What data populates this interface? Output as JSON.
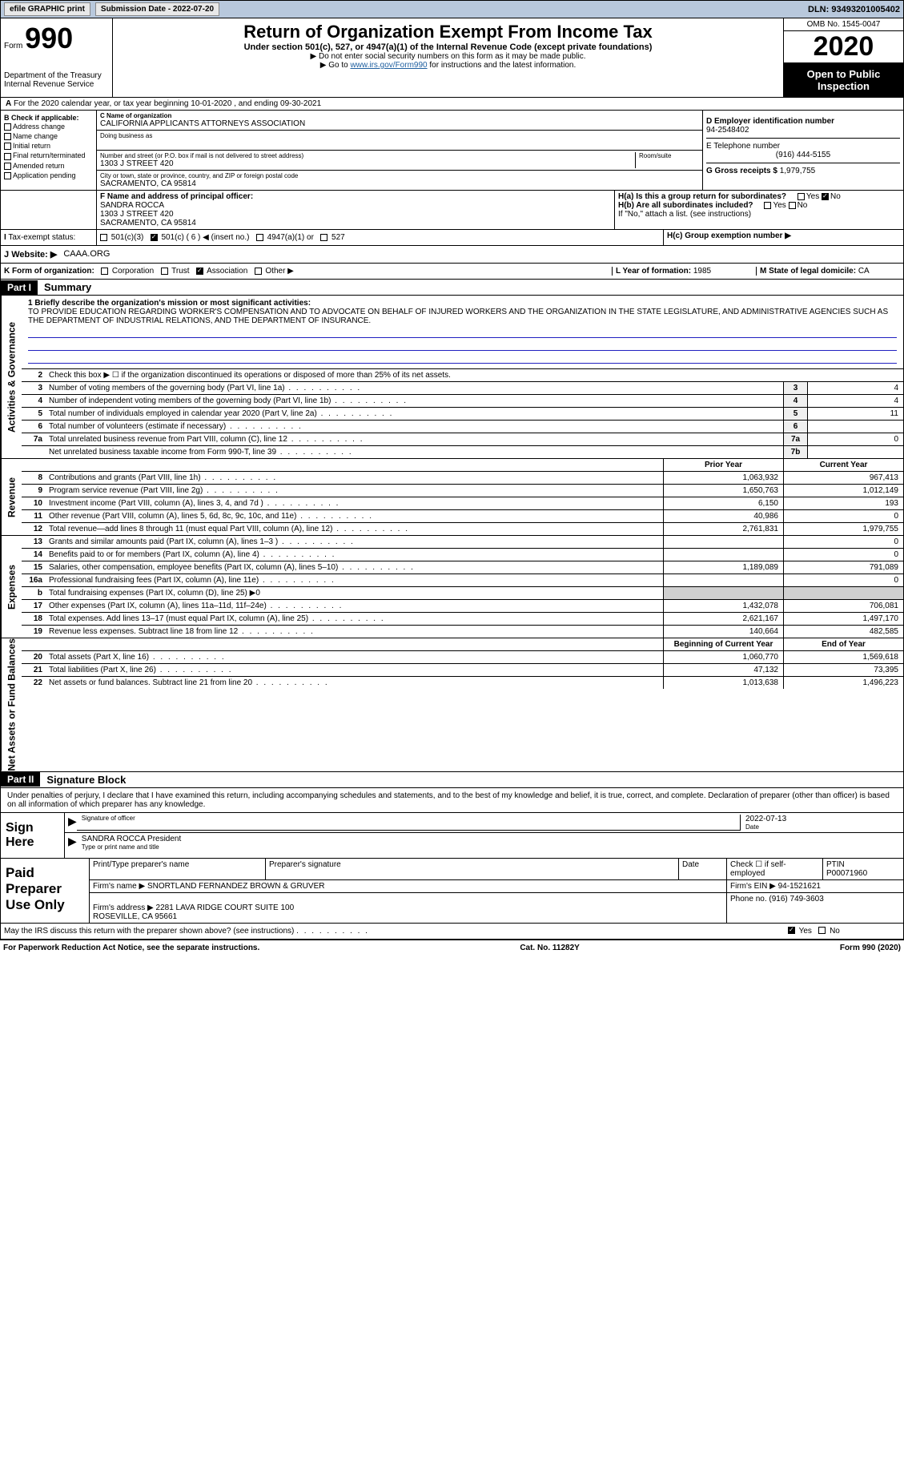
{
  "topbar": {
    "efile": "efile GRAPHIC print",
    "sub_label": "Submission Date - 2022-07-20",
    "dln": "DLN: 93493201005402"
  },
  "header": {
    "form": "Form",
    "num": "990",
    "dept": "Department of the Treasury\nInternal Revenue Service",
    "title": "Return of Organization Exempt From Income Tax",
    "sub1": "Under section 501(c), 527, or 4947(a)(1) of the Internal Revenue Code (except private foundations)",
    "sub2": "▶ Do not enter social security numbers on this form as it may be made public.",
    "sub3_pre": "▶ Go to ",
    "sub3_link": "www.irs.gov/Form990",
    "sub3_post": " for instructions and the latest information.",
    "omb": "OMB No. 1545-0047",
    "year": "2020",
    "otp": "Open to Public Inspection"
  },
  "A": "For the 2020 calendar year, or tax year beginning 10-01-2020   , and ending 09-30-2021",
  "B": {
    "title": "B Check if applicable:",
    "items": [
      "Address change",
      "Name change",
      "Initial return",
      "Final return/terminated",
      "Amended return",
      "Application pending"
    ]
  },
  "C": {
    "label": "C Name of organization",
    "name": "CALIFORNIA APPLICANTS ATTORNEYS ASSOCIATION",
    "dba_lbl": "Doing business as",
    "addr_lbl": "Number and street (or P.O. box if mail is not delivered to street address)",
    "room_lbl": "Room/suite",
    "addr": "1303 J STREET 420",
    "city_lbl": "City or town, state or province, country, and ZIP or foreign postal code",
    "city": "SACRAMENTO, CA  95814"
  },
  "D": {
    "lbl": "D Employer identification number",
    "val": "94-2548402"
  },
  "E": {
    "lbl": "E Telephone number",
    "val": "(916) 444-5155"
  },
  "G": {
    "lbl": "G Gross receipts $",
    "val": "1,979,755"
  },
  "F": {
    "lbl": "F  Name and address of principal officer:",
    "name": "SANDRA ROCCA",
    "addr1": "1303 J STREET 420",
    "addr2": "SACRAMENTO, CA  95814"
  },
  "H": {
    "a": "H(a)  Is this a group return for subordinates?",
    "b": "H(b)  Are all subordinates included?",
    "b2": "If \"No,\" attach a list. (see instructions)",
    "c": "H(c)  Group exemption number ▶",
    "yes": "Yes",
    "no": "No"
  },
  "I": {
    "lbl": "Tax-exempt status:",
    "opts": [
      "501(c)(3)",
      "501(c) ( 6 ) ◀ (insert no.)",
      "4947(a)(1) or",
      "527"
    ]
  },
  "J": {
    "lbl": "Website: ▶",
    "val": "CAAA.ORG"
  },
  "K": {
    "lbl": "K Form of organization:",
    "opts": [
      "Corporation",
      "Trust",
      "Association",
      "Other ▶"
    ]
  },
  "L": {
    "lbl": "L Year of formation:",
    "val": "1985"
  },
  "M": {
    "lbl": "M State of legal domicile:",
    "val": "CA"
  },
  "part1": {
    "hdr": "Part I",
    "title": "Summary",
    "tab1": "Activities & Governance",
    "tab2": "Revenue",
    "tab3": "Expenses",
    "tab4": "Net Assets or Fund Balances",
    "line1_lbl": "1  Briefly describe the organization's mission or most significant activities:",
    "mission": "TO PROVIDE EDUCATION REGARDING WORKER'S COMPENSATION AND TO ADVOCATE ON BEHALF OF INJURED WORKERS AND THE ORGANIZATION IN THE STATE LEGISLATURE, AND ADMINISTRATIVE AGENCIES SUCH AS THE DEPARTMENT OF INDUSTRIAL RELATIONS, AND THE DEPARTMENT OF INSURANCE.",
    "line2": "Check this box ▶ ☐ if the organization discontinued its operations or disposed of more than 25% of its net assets.",
    "lines_ag": [
      {
        "n": "3",
        "t": "Number of voting members of the governing body (Part VI, line 1a)",
        "box": "3",
        "v": "4"
      },
      {
        "n": "4",
        "t": "Number of independent voting members of the governing body (Part VI, line 1b)",
        "box": "4",
        "v": "4"
      },
      {
        "n": "5",
        "t": "Total number of individuals employed in calendar year 2020 (Part V, line 2a)",
        "box": "5",
        "v": "11"
      },
      {
        "n": "6",
        "t": "Total number of volunteers (estimate if necessary)",
        "box": "6",
        "v": ""
      },
      {
        "n": "7a",
        "t": "Total unrelated business revenue from Part VIII, column (C), line 12",
        "box": "7a",
        "v": "0"
      },
      {
        "n": "",
        "t": "Net unrelated business taxable income from Form 990-T, line 39",
        "box": "7b",
        "v": ""
      }
    ],
    "col_prior": "Prior Year",
    "col_current": "Current Year",
    "lines_rev": [
      {
        "n": "8",
        "t": "Contributions and grants (Part VIII, line 1h)",
        "p": "1,063,932",
        "c": "967,413"
      },
      {
        "n": "9",
        "t": "Program service revenue (Part VIII, line 2g)",
        "p": "1,650,763",
        "c": "1,012,149"
      },
      {
        "n": "10",
        "t": "Investment income (Part VIII, column (A), lines 3, 4, and 7d )",
        "p": "6,150",
        "c": "193"
      },
      {
        "n": "11",
        "t": "Other revenue (Part VIII, column (A), lines 5, 6d, 8c, 9c, 10c, and 11e)",
        "p": "40,986",
        "c": "0"
      },
      {
        "n": "12",
        "t": "Total revenue—add lines 8 through 11 (must equal Part VIII, column (A), line 12)",
        "p": "2,761,831",
        "c": "1,979,755"
      }
    ],
    "lines_exp": [
      {
        "n": "13",
        "t": "Grants and similar amounts paid (Part IX, column (A), lines 1–3 )",
        "p": "",
        "c": "0"
      },
      {
        "n": "14",
        "t": "Benefits paid to or for members (Part IX, column (A), line 4)",
        "p": "",
        "c": "0"
      },
      {
        "n": "15",
        "t": "Salaries, other compensation, employee benefits (Part IX, column (A), lines 5–10)",
        "p": "1,189,089",
        "c": "791,089"
      },
      {
        "n": "16a",
        "t": "Professional fundraising fees (Part IX, column (A), line 11e)",
        "p": "",
        "c": "0"
      },
      {
        "n": "b",
        "t": "Total fundraising expenses (Part IX, column (D), line 25) ▶0",
        "p": "",
        "c": "",
        "noval": true
      },
      {
        "n": "17",
        "t": "Other expenses (Part IX, column (A), lines 11a–11d, 11f–24e)",
        "p": "1,432,078",
        "c": "706,081"
      },
      {
        "n": "18",
        "t": "Total expenses. Add lines 13–17 (must equal Part IX, column (A), line 25)",
        "p": "2,621,167",
        "c": "1,497,170"
      },
      {
        "n": "19",
        "t": "Revenue less expenses. Subtract line 18 from line 12",
        "p": "140,664",
        "c": "482,585"
      }
    ],
    "col_begin": "Beginning of Current Year",
    "col_end": "End of Year",
    "lines_na": [
      {
        "n": "20",
        "t": "Total assets (Part X, line 16)",
        "p": "1,060,770",
        "c": "1,569,618"
      },
      {
        "n": "21",
        "t": "Total liabilities (Part X, line 26)",
        "p": "47,132",
        "c": "73,395"
      },
      {
        "n": "22",
        "t": "Net assets or fund balances. Subtract line 21 from line 20",
        "p": "1,013,638",
        "c": "1,496,223"
      }
    ]
  },
  "part2": {
    "hdr": "Part II",
    "title": "Signature Block",
    "intro": "Under penalties of perjury, I declare that I have examined this return, including accompanying schedules and statements, and to the best of my knowledge and belief, it is true, correct, and complete. Declaration of preparer (other than officer) is based on all information of which preparer has any knowledge.",
    "sign_here": "Sign Here",
    "sig_of": "Signature of officer",
    "date": "Date",
    "sig_date": "2022-07-13",
    "sig_name": "SANDRA ROCCA  President",
    "sig_type": "Type or print name and title",
    "paid": "Paid Preparer Use Only",
    "prep_name_lbl": "Print/Type preparer's name",
    "prep_sig_lbl": "Preparer's signature",
    "date_lbl": "Date",
    "check_lbl": "Check ☐ if self-employed",
    "ptin_lbl": "PTIN",
    "ptin": "P00071960",
    "firm_name_lbl": "Firm's name    ▶",
    "firm_name": "SNORTLAND FERNANDEZ BROWN & GRUVER",
    "firm_ein_lbl": "Firm's EIN ▶",
    "firm_ein": "94-1521621",
    "firm_addr_lbl": "Firm's address ▶",
    "firm_addr": "2281 LAVA RIDGE COURT SUITE 100\nROSEVILLE, CA  95661",
    "phone_lbl": "Phone no.",
    "phone": "(916) 749-3603",
    "discuss": "May the IRS discuss this return with the preparer shown above? (see instructions)",
    "yes": "Yes",
    "no": "No"
  },
  "footer": {
    "pra": "For Paperwork Reduction Act Notice, see the separate instructions.",
    "cat": "Cat. No. 11282Y",
    "form": "Form 990 (2020)"
  }
}
